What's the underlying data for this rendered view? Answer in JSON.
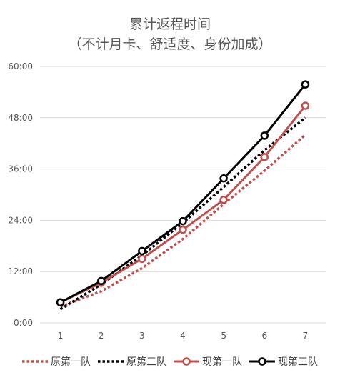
{
  "chart_data": {
    "type": "line",
    "title_line1": "累计返程时间",
    "title_line2": "（不计月卡、舒适度、身份加成）",
    "xlabel": "",
    "ylabel": "",
    "categories": [
      "1",
      "2",
      "3",
      "4",
      "5",
      "6",
      "7"
    ],
    "y_unit": "minutes",
    "ylim": [
      0,
      3600
    ],
    "y_ticks": [
      0,
      720,
      1440,
      2160,
      2880,
      3600
    ],
    "y_tick_labels": [
      "0:00",
      "12:00",
      "24:00",
      "36:00",
      "48:00",
      "60:00"
    ],
    "grid": true,
    "legend_position": "bottom",
    "series": [
      {
        "name": "原第一队",
        "color": "#c0504d",
        "style": "dotted",
        "marker": "none",
        "values": [
          228,
          444,
          768,
          1176,
          1668,
          2136,
          2640
        ]
      },
      {
        "name": "原第三队",
        "color": "#000000",
        "style": "dotted",
        "marker": "none",
        "values": [
          192,
          540,
          948,
          1404,
          1908,
          2424,
          2880
        ]
      },
      {
        "name": "现第一队",
        "color": "#c0504d",
        "style": "solid",
        "marker": "circle",
        "values": [
          288,
          564,
          900,
          1308,
          1728,
          2328,
          3048
        ]
      },
      {
        "name": "现第三队",
        "color": "#000000",
        "style": "solid",
        "marker": "circle",
        "values": [
          288,
          588,
          1008,
          1428,
          2028,
          2628,
          3348
        ]
      }
    ]
  }
}
